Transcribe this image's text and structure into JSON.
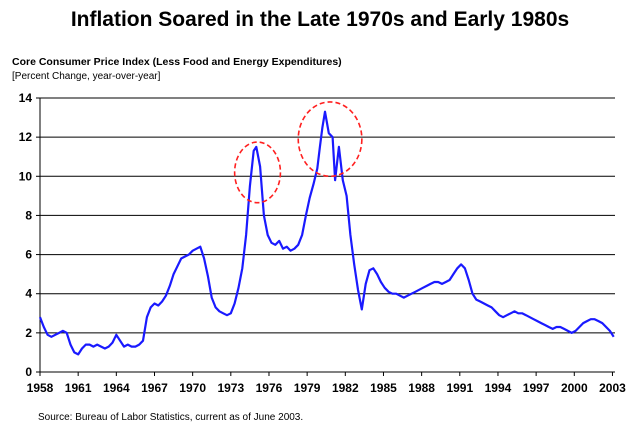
{
  "chart_data": {
    "type": "line",
    "title": "Inflation Soared in the Late 1970s and Early 1980s",
    "subtitle": "Core Consumer Price Index (Less Food and Energy Expenditures)",
    "units": "[Percent Change, year-over-year]",
    "source": "Source:  Bureau of Labor Statistics, current as of June 2003.",
    "xlim": [
      1958,
      2003.2
    ],
    "ylim": [
      0,
      14
    ],
    "x_ticks": [
      "1958",
      "1961",
      "1964",
      "1967",
      "1970",
      "1973",
      "1976",
      "1979",
      "1982",
      "1985",
      "1988",
      "1991",
      "1994",
      "1997",
      "2000",
      "2003"
    ],
    "y_ticks": [
      "0",
      "2",
      "4",
      "6",
      "8",
      "10",
      "12",
      "14"
    ],
    "grid": true,
    "line_color": "#1a1aff",
    "highlight_color": "#ff2020",
    "series": [
      {
        "x": [
          1958.0,
          1958.3,
          1958.6,
          1958.9,
          1959.2,
          1959.5,
          1959.8,
          1960.1,
          1960.4,
          1960.7,
          1961.0,
          1961.3,
          1961.6,
          1961.9,
          1962.2,
          1962.5,
          1962.8,
          1963.1,
          1963.4,
          1963.7,
          1964.0,
          1964.3,
          1964.6,
          1964.9,
          1965.2,
          1965.5,
          1965.8,
          1966.1,
          1966.4,
          1966.7,
          1967.0,
          1967.3,
          1967.6,
          1967.9,
          1968.2,
          1968.5,
          1968.8,
          1969.1,
          1969.4,
          1969.7,
          1970.0,
          1970.3,
          1970.6,
          1970.9,
          1971.2,
          1971.5,
          1971.8,
          1972.1,
          1972.4,
          1972.7,
          1973.0,
          1973.3,
          1973.6,
          1973.9,
          1974.2,
          1974.5,
          1974.8,
          1975.0,
          1975.3,
          1975.6,
          1975.9,
          1976.2,
          1976.5,
          1976.8,
          1977.1,
          1977.4,
          1977.7,
          1978.0,
          1978.3,
          1978.6,
          1978.9,
          1979.2,
          1979.5,
          1979.8,
          1980.0,
          1980.2,
          1980.4,
          1980.7,
          1981.0,
          1981.2,
          1981.5,
          1981.8,
          1982.1,
          1982.4,
          1982.7,
          1983.0,
          1983.3,
          1983.6,
          1983.9,
          1984.2,
          1984.5,
          1984.8,
          1985.1,
          1985.4,
          1985.7,
          1986.0,
          1986.3,
          1986.6,
          1986.9,
          1987.2,
          1987.5,
          1987.8,
          1988.1,
          1988.4,
          1988.7,
          1989.0,
          1989.3,
          1989.6,
          1989.9,
          1990.2,
          1990.5,
          1990.8,
          1991.1,
          1991.4,
          1991.7,
          1992.0,
          1992.3,
          1992.6,
          1992.9,
          1993.2,
          1993.5,
          1993.8,
          1994.1,
          1994.4,
          1994.7,
          1995.0,
          1995.3,
          1995.6,
          1995.9,
          1996.2,
          1996.5,
          1996.8,
          1997.1,
          1997.4,
          1997.7,
          1998.0,
          1998.3,
          1998.6,
          1998.9,
          1999.2,
          1999.5,
          1999.8,
          2000.1,
          2000.4,
          2000.7,
          2001.0,
          2001.3,
          2001.6,
          2001.9,
          2002.2,
          2002.5,
          2002.8,
          2003.1
        ],
        "y": [
          2.8,
          2.3,
          1.9,
          1.8,
          1.9,
          2.0,
          2.1,
          2.0,
          1.4,
          1.0,
          0.9,
          1.2,
          1.4,
          1.4,
          1.3,
          1.4,
          1.3,
          1.2,
          1.3,
          1.5,
          1.9,
          1.6,
          1.3,
          1.4,
          1.3,
          1.3,
          1.4,
          1.6,
          2.8,
          3.3,
          3.5,
          3.4,
          3.6,
          3.9,
          4.4,
          5.0,
          5.4,
          5.8,
          5.9,
          6.0,
          6.2,
          6.3,
          6.4,
          5.8,
          4.9,
          3.8,
          3.3,
          3.1,
          3.0,
          2.9,
          3.0,
          3.5,
          4.3,
          5.3,
          7.0,
          9.5,
          11.3,
          11.5,
          10.5,
          8.0,
          7.0,
          6.6,
          6.5,
          6.7,
          6.3,
          6.4,
          6.2,
          6.3,
          6.5,
          7.0,
          8.0,
          8.9,
          9.6,
          10.4,
          11.5,
          12.5,
          13.3,
          12.2,
          12.0,
          9.8,
          11.5,
          9.8,
          9.0,
          7.0,
          5.5,
          4.2,
          3.2,
          4.5,
          5.2,
          5.3,
          5.0,
          4.6,
          4.3,
          4.1,
          4.0,
          4.0,
          3.9,
          3.8,
          3.9,
          4.0,
          4.1,
          4.2,
          4.3,
          4.4,
          4.5,
          4.6,
          4.6,
          4.5,
          4.6,
          4.7,
          5.0,
          5.3,
          5.5,
          5.3,
          4.7,
          4.0,
          3.7,
          3.6,
          3.5,
          3.4,
          3.3,
          3.1,
          2.9,
          2.8,
          2.9,
          3.0,
          3.1,
          3.0,
          3.0,
          2.9,
          2.8,
          2.7,
          2.6,
          2.5,
          2.4,
          2.3,
          2.2,
          2.3,
          2.3,
          2.2,
          2.1,
          2.0,
          2.1,
          2.3,
          2.5,
          2.6,
          2.7,
          2.7,
          2.6,
          2.5,
          2.3,
          2.1,
          1.8
        ]
      }
    ],
    "annotations": [
      {
        "shape": "dashed-ellipse",
        "center": [
          1975.1,
          10.2
        ],
        "radius_years": 1.8,
        "radius_units": 1.55
      },
      {
        "shape": "dashed-ellipse",
        "center": [
          1980.8,
          11.9
        ],
        "radius_years": 2.5,
        "radius_units": 1.9
      }
    ]
  }
}
